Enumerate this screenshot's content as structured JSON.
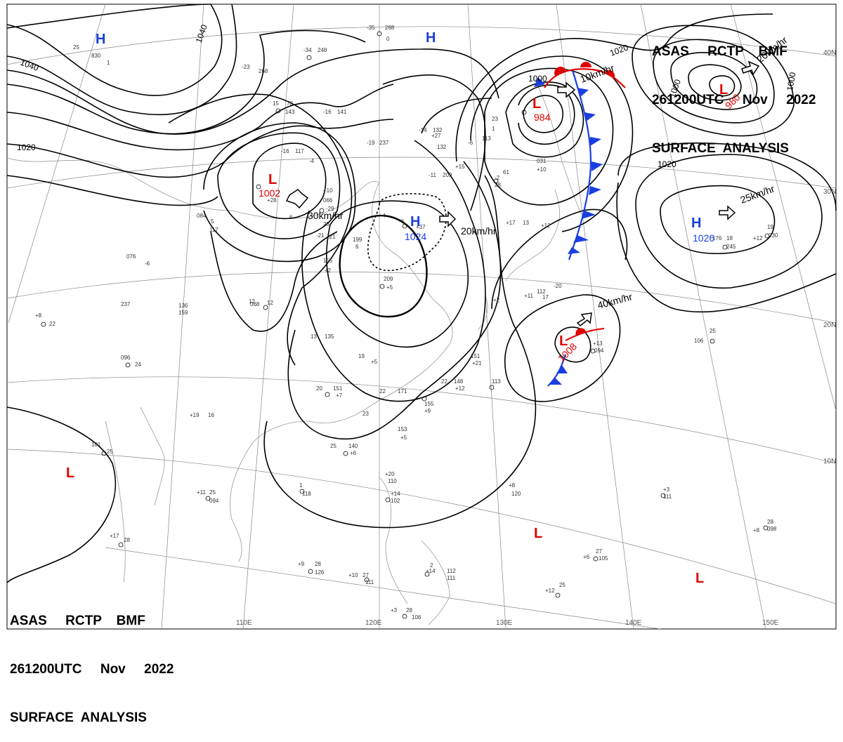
{
  "header_top": {
    "line1": "ASAS     RCTP    BMF",
    "line2": "261200UTC     Nov     2022",
    "line3": "SURFACE  ANALYSIS"
  },
  "header_bottom": {
    "line1": "ASAS     RCTP    BMF",
    "line2": "261200UTC     Nov     2022",
    "line3": "SURFACE  ANALYSIS"
  },
  "graticule": {
    "lon_labels": [
      "110E",
      "120E",
      "130E",
      "140E",
      "150E"
    ],
    "lat_labels": [
      "40N",
      "30N",
      "20N",
      "10N"
    ]
  },
  "isobar_labels": {
    "a": "1040",
    "b": "1040",
    "c": "1020",
    "d": "1020",
    "e": "1000",
    "f": "1000",
    "g": "1000",
    "h": "1020"
  },
  "pressure_systems": {
    "h_mongolia": {
      "symbol": "H"
    },
    "h_north": {
      "symbol": "H"
    },
    "l_inland": {
      "symbol": "L",
      "value": "1002"
    },
    "h_china": {
      "symbol": "H",
      "value": "1024"
    },
    "l_japan_sea": {
      "symbol": "L",
      "value": "984"
    },
    "l_kamchatka": {
      "symbol": "L",
      "value": "980"
    },
    "h_pacific": {
      "symbol": "H",
      "value": "1026"
    },
    "l_east_of_philippines": {
      "symbol": "L",
      "value": "1008"
    },
    "l_bay_of_bengal": {
      "symbol": "L"
    },
    "l_philippine_sea": {
      "symbol": "L"
    },
    "l_southeast": {
      "symbol": "L"
    }
  },
  "motion_labels": {
    "m1": "30km/hr",
    "m2": "20km/hr",
    "m3": "10km/hr",
    "m4": "20km/hr",
    "m5": "25km/hr",
    "m6": "40km/hr"
  },
  "station_labels": [
    "25",
    "830",
    "1",
    "-35",
    "288",
    "0",
    "-34",
    "248",
    "-23",
    "268",
    "15",
    "78",
    "143",
    "-16",
    "141",
    "-19",
    "237",
    "-14",
    "132",
    "-6",
    "113",
    "23",
    "1",
    "61",
    "28",
    "031",
    "+10",
    "-16",
    "117",
    "-4",
    "066",
    "+28",
    "-29",
    "28",
    "-21",
    "-11",
    "209",
    "-6",
    "-4",
    "+37",
    "199",
    "6",
    "12",
    "-21",
    "155",
    "+2",
    "209",
    "+5",
    "151",
    "+21",
    "13",
    "135",
    "19",
    "+5",
    "20",
    "151",
    "+7",
    "22",
    "171",
    "22",
    "148",
    "+12",
    "23",
    "155",
    "+9",
    "153",
    "+5",
    "25",
    "140",
    "+6",
    "1",
    "118",
    "+11",
    "25",
    "094",
    "+20",
    "110",
    "+14",
    "102",
    "+8",
    "120",
    "+9",
    "28",
    "126",
    "+10",
    "27",
    "111",
    "+14",
    "2",
    "112",
    "111",
    "+3",
    "28",
    "106",
    "+17",
    "28",
    "076",
    "-6",
    "237",
    "136",
    "159",
    "+8",
    "22",
    "096",
    "24",
    "068",
    "12",
    "113",
    "+19",
    "16",
    "106",
    "25",
    "176",
    "18",
    "245",
    "+12",
    "19",
    "230",
    "+13",
    "094",
    "-20",
    "112",
    "17",
    "+17",
    "13",
    "+11",
    "+12",
    "+2",
    "+3",
    "111",
    "+8",
    "28",
    "098",
    "+6",
    "27",
    "105",
    "+12",
    "25",
    "101",
    "25",
    "084",
    "5",
    "117",
    "6",
    "+10",
    "-2",
    "+27",
    "132",
    "+15",
    "5"
  ]
}
